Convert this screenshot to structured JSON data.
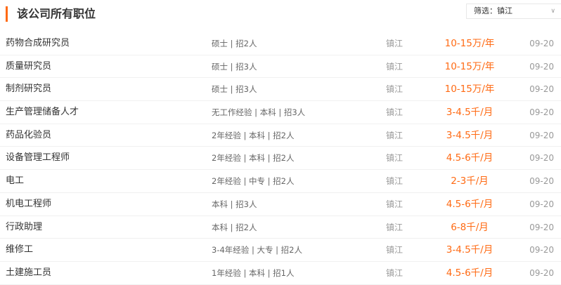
{
  "header": {
    "title": "该公司所有职位"
  },
  "filter": {
    "label": "筛选：镇江"
  },
  "jobs": [
    {
      "title": "药物合成研究员",
      "req": "硕士 | 招2人",
      "loc": "镇江",
      "salary": "10-15万/年",
      "date": "09-20"
    },
    {
      "title": "质量研究员",
      "req": "硕士 | 招3人",
      "loc": "镇江",
      "salary": "10-15万/年",
      "date": "09-20"
    },
    {
      "title": "制剂研究员",
      "req": "硕士 | 招3人",
      "loc": "镇江",
      "salary": "10-15万/年",
      "date": "09-20"
    },
    {
      "title": "生产管理储备人才",
      "req": "无工作经验 | 本科 | 招3人",
      "loc": "镇江",
      "salary": "3-4.5千/月",
      "date": "09-20"
    },
    {
      "title": "药品化验员",
      "req": "2年经验 | 本科 | 招2人",
      "loc": "镇江",
      "salary": "3-4.5千/月",
      "date": "09-20"
    },
    {
      "title": "设备管理工程师",
      "req": "2年经验 | 本科 | 招2人",
      "loc": "镇江",
      "salary": "4.5-6千/月",
      "date": "09-20"
    },
    {
      "title": "电工",
      "req": "2年经验 | 中专 | 招2人",
      "loc": "镇江",
      "salary": "2-3千/月",
      "date": "09-20"
    },
    {
      "title": "机电工程师",
      "req": "本科 | 招3人",
      "loc": "镇江",
      "salary": "4.5-6千/月",
      "date": "09-20"
    },
    {
      "title": "行政助理",
      "req": "本科 | 招2人",
      "loc": "镇江",
      "salary": "6-8千/月",
      "date": "09-20"
    },
    {
      "title": "维修工",
      "req": "3-4年经验 | 大专 | 招2人",
      "loc": "镇江",
      "salary": "3-4.5千/月",
      "date": "09-20"
    },
    {
      "title": "土建施工员",
      "req": "1年经验 | 本科 | 招1人",
      "loc": "镇江",
      "salary": "4.5-6千/月",
      "date": "09-20"
    }
  ],
  "colors": {
    "accent": "#ff6a13"
  }
}
